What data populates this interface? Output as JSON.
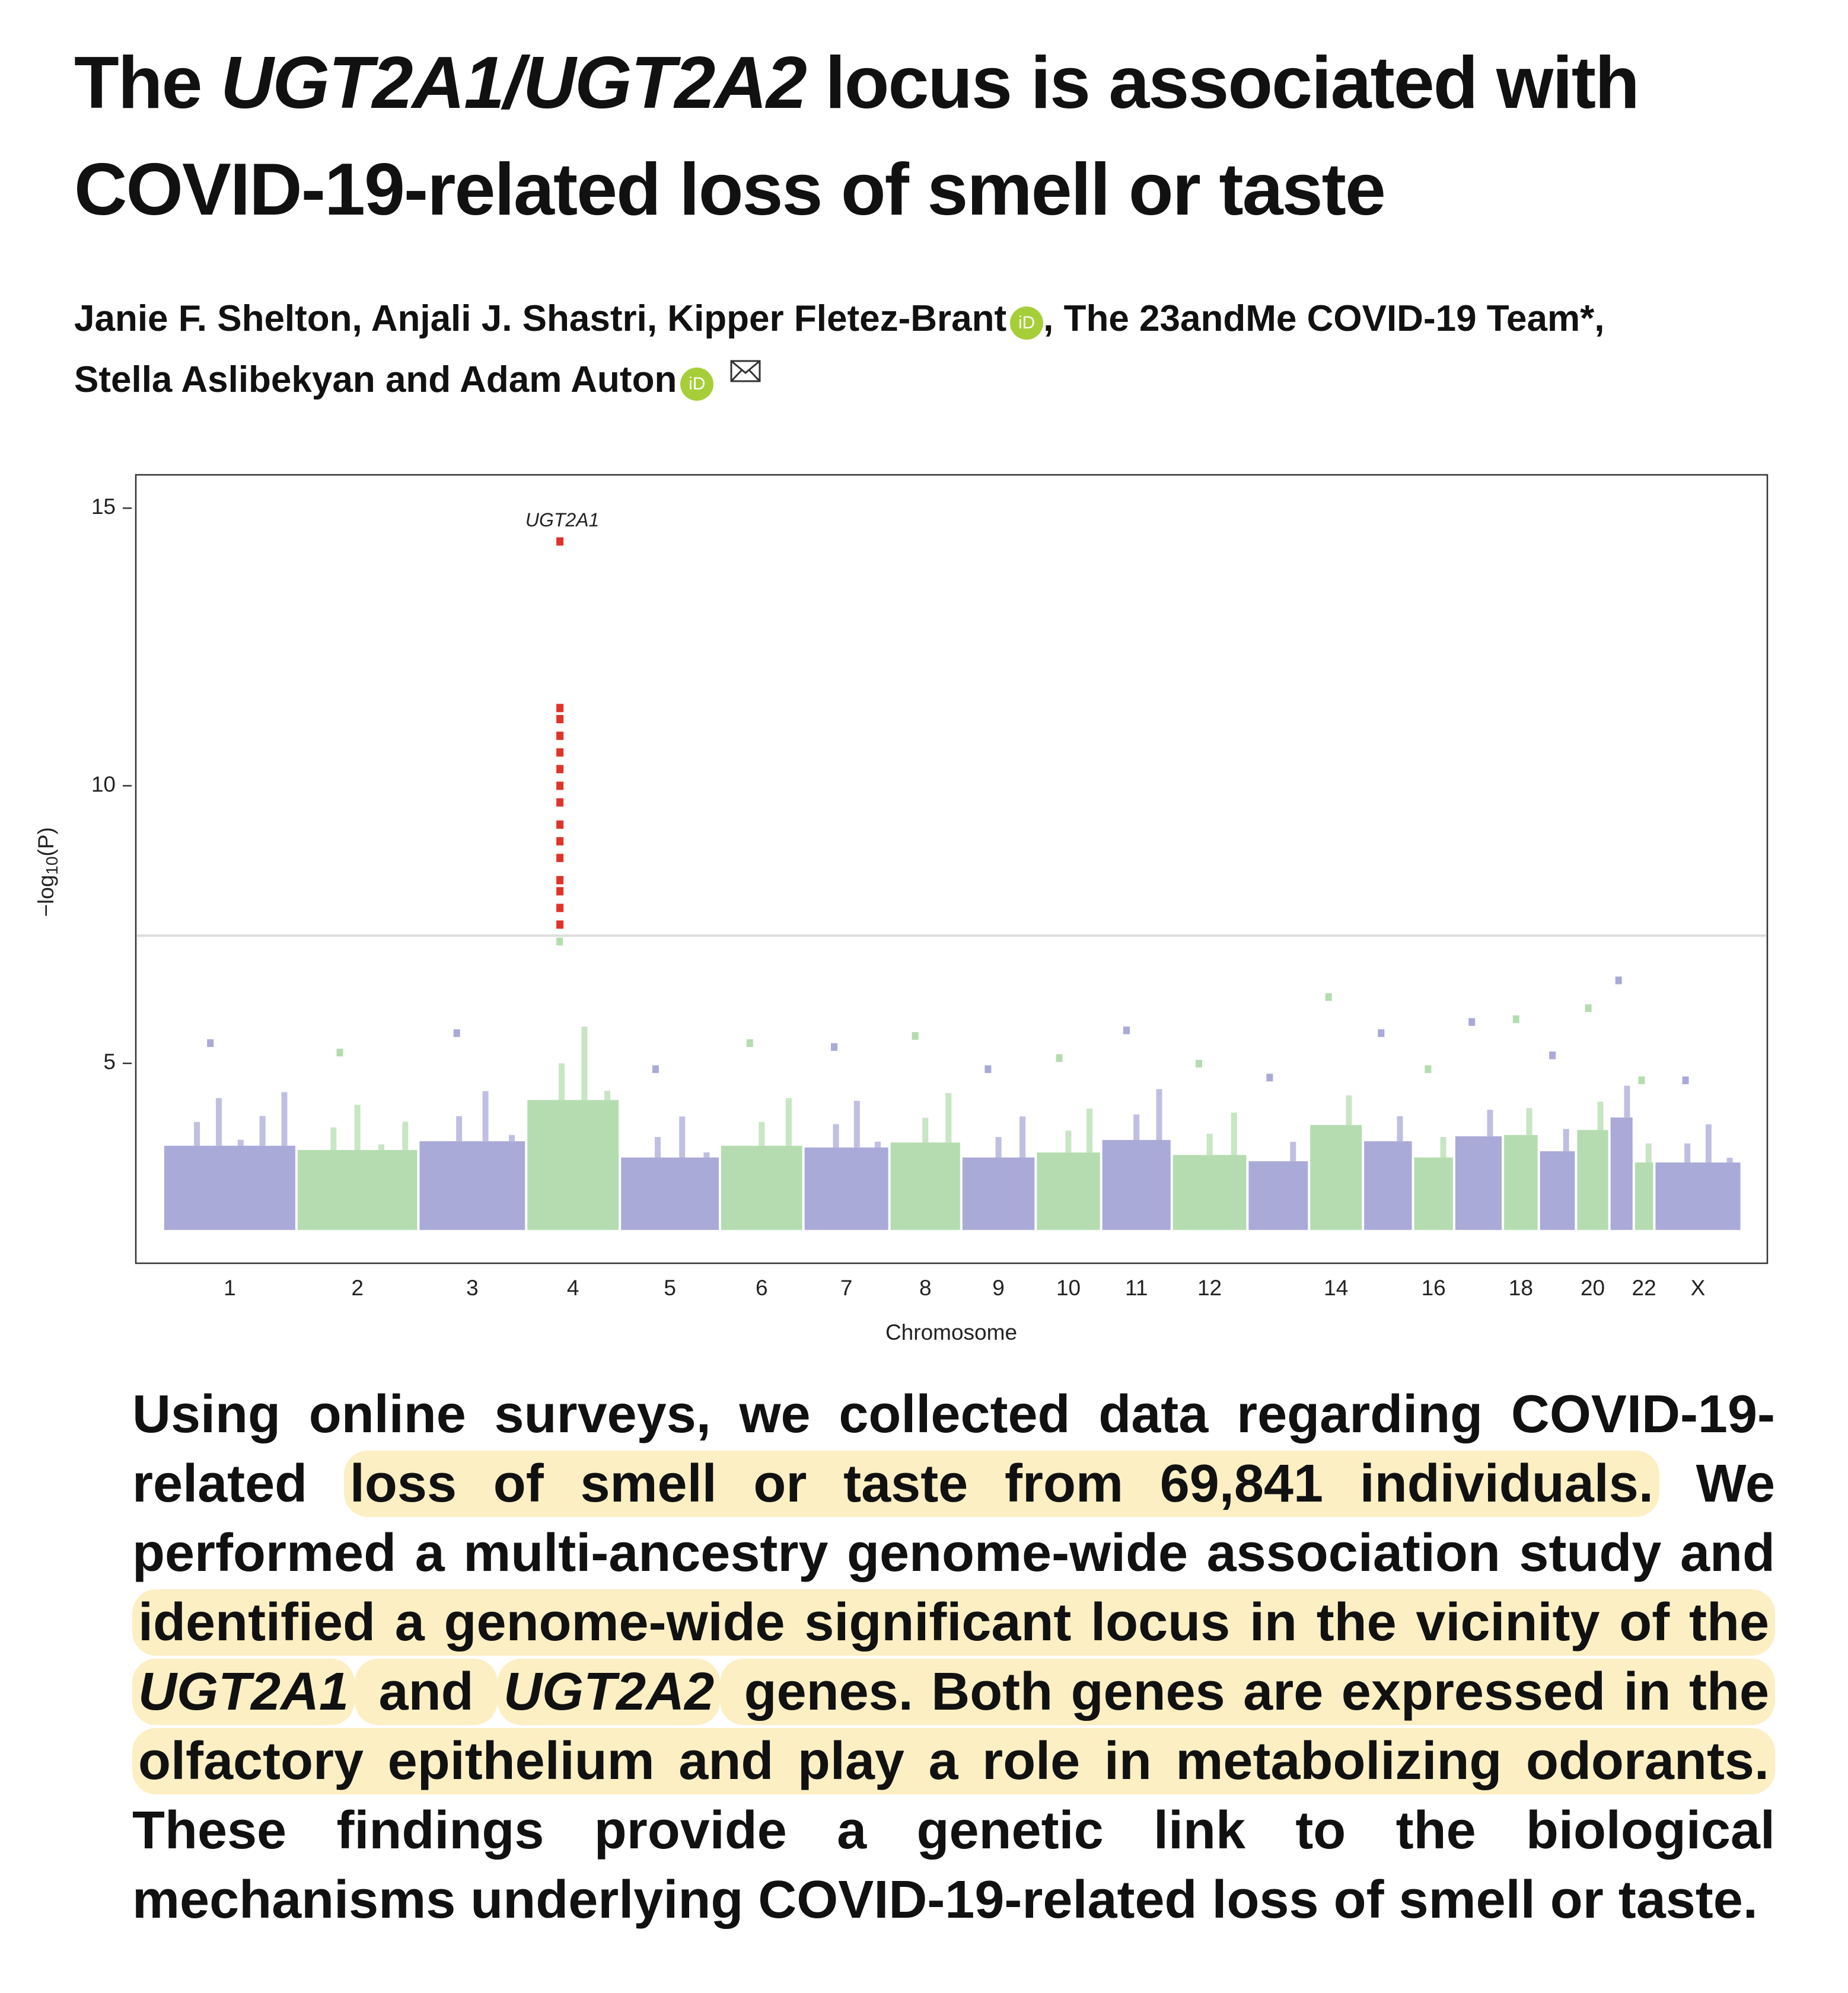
{
  "header": {
    "title": [
      "The ",
      "UGT2A1/UGT2A2",
      " locus is associated with COVID-19-related loss of smell or taste"
    ],
    "author_lines": [
      "Janie F. Shelton, Anjali J. Shastri, Kipper Fletez-Brant",
      ", The 23andMe COVID-19 Team*,",
      "Stella Aslibekyan and Adam Auton"
    ],
    "orcid_label": "iD"
  },
  "chart_data": {
    "type": "manhattan",
    "x_label": "Chromosome",
    "y_label": [
      "−log",
      "10",
      "(P)"
    ],
    "categories": [
      "1",
      "2",
      "3",
      "4",
      "5",
      "6",
      "7",
      "8",
      "9",
      "10",
      "11",
      "12",
      null,
      "14",
      null,
      "16",
      null,
      "18",
      null,
      "20",
      null,
      "22",
      "X"
    ],
    "values": [
      5.37,
      5.2,
      5.55,
      7.2,
      4.9,
      5.37,
      5.3,
      5.5,
      4.9,
      5.1,
      5.6,
      5.0,
      4.75,
      6.2,
      5.55,
      4.9,
      5.75,
      5.8,
      5.15,
      6.0,
      6.5,
      4.7,
      4.7
    ],
    "min_value": 2,
    "colors": [
      "#aaaad8",
      "#b5dcb0"
    ],
    "significant": {
      "chromosome": "4",
      "color": "#e0332a",
      "label": "UGT2A1",
      "values": [
        14.4,
        11.4,
        11.2,
        10.9,
        10.6,
        10.3,
        10.0,
        9.7,
        9.3,
        9.0,
        8.7,
        8.3,
        8.1,
        7.8,
        7.5
      ]
    },
    "threshold": 7.3,
    "ylim": [
      1.4,
      15.6
    ],
    "yticks": [
      5,
      10,
      15
    ]
  },
  "abstract": [
    {
      "text": "Using online surveys, we collected data regarding COVID-19-related "
    },
    {
      "text": "loss of smell or taste from 69,841 individuals.",
      "highlight": true
    },
    {
      "text": " We performed a multi-ancestry genome-wide association study and "
    },
    {
      "text": "identified a genome-wide significant locus in the vicinity of the ",
      "highlight": true
    },
    {
      "text": "UGT2A1",
      "highlight": true,
      "italic": true
    },
    {
      "text": " and ",
      "highlight": true
    },
    {
      "text": "UGT2A2",
      "highlight": true,
      "italic": true
    },
    {
      "text": " genes. Both genes are expressed in the olfactory epithelium and play a role in metabolizing odorants.",
      "highlight": true
    },
    {
      "text": " These findings provide a genetic link to the biological mechanisms underlying COVID-19-related loss of smell or taste."
    }
  ]
}
